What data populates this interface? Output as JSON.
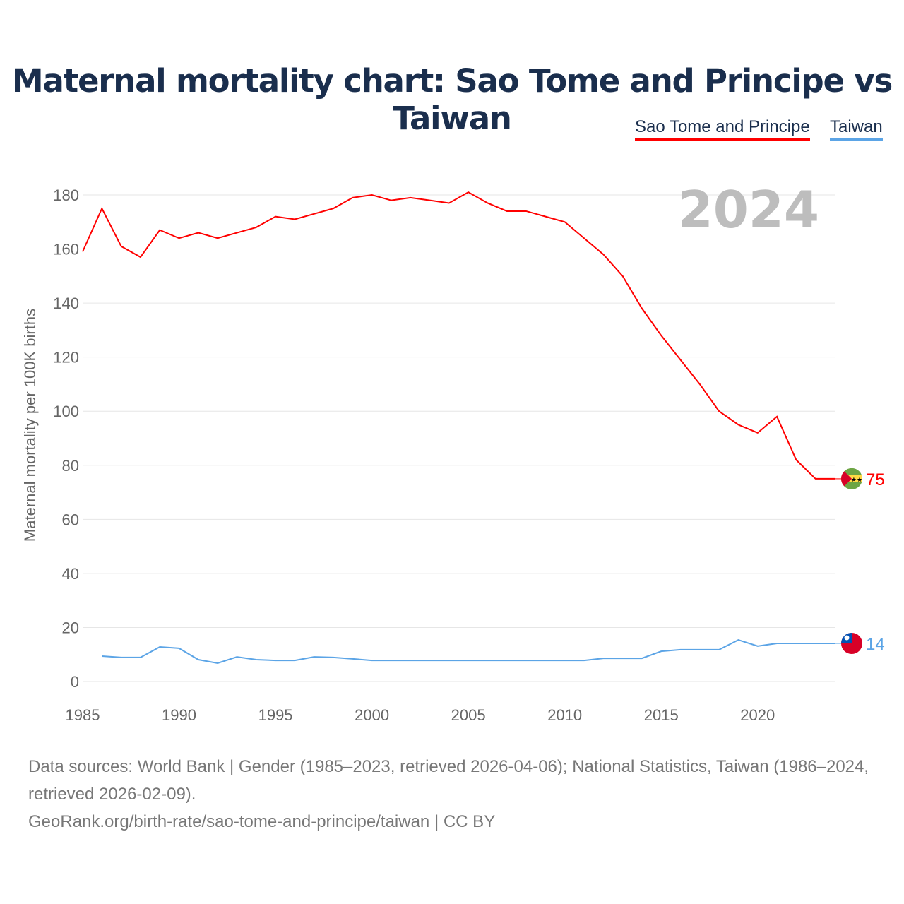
{
  "chart_data": {
    "type": "line",
    "title": "Maternal mortality chart: Sao Tome and Principe vs Taiwan",
    "ylabel": "Maternal mortality per 100K births",
    "xlabel": "",
    "year_watermark": "2024",
    "ylim": [
      0,
      180
    ],
    "xlim": [
      1985,
      2024
    ],
    "yticks": [
      0,
      20,
      40,
      60,
      80,
      100,
      120,
      140,
      160,
      180
    ],
    "xticks": [
      1985,
      1990,
      1995,
      2000,
      2005,
      2010,
      2015,
      2020
    ],
    "grid": true,
    "legend_position": "top-right",
    "series": [
      {
        "name": "Sao Tome and Principe",
        "color": "#ff0000",
        "end_label": "75",
        "x": [
          1985,
          1986,
          1987,
          1988,
          1989,
          1990,
          1991,
          1992,
          1993,
          1994,
          1995,
          1996,
          1997,
          1998,
          1999,
          2000,
          2001,
          2002,
          2003,
          2004,
          2005,
          2006,
          2007,
          2008,
          2009,
          2010,
          2011,
          2012,
          2013,
          2014,
          2015,
          2016,
          2017,
          2018,
          2019,
          2020,
          2021,
          2022,
          2023
        ],
        "values": [
          159,
          175,
          161,
          157,
          167,
          164,
          166,
          164,
          166,
          168,
          172,
          171,
          173,
          175,
          179,
          180,
          178,
          179,
          178,
          177,
          181,
          177,
          174,
          174,
          172,
          170,
          164,
          158,
          150,
          138,
          128,
          119,
          110,
          100,
          95,
          92,
          98,
          82,
          75
        ]
      },
      {
        "name": "Taiwan",
        "color": "#5ba4e6",
        "end_label": "14",
        "x": [
          1986,
          1987,
          1988,
          1989,
          1990,
          1991,
          1992,
          1993,
          1994,
          1995,
          1996,
          1997,
          1998,
          1999,
          2000,
          2001,
          2002,
          2003,
          2004,
          2005,
          2006,
          2007,
          2008,
          2009,
          2010,
          2011,
          2012,
          2013,
          2014,
          2015,
          2016,
          2017,
          2018,
          2019,
          2020,
          2021,
          2022,
          2023,
          2024
        ],
        "values": [
          9.4,
          8.9,
          8.9,
          12.8,
          12.3,
          8.1,
          6.8,
          9.1,
          8.1,
          7.8,
          7.8,
          9.1,
          8.9,
          8.4,
          7.8,
          7.8,
          7.8,
          7.8,
          7.8,
          7.8,
          7.8,
          7.8,
          7.8,
          7.8,
          7.8,
          7.8,
          8.6,
          8.6,
          8.6,
          11.2,
          11.8,
          11.8,
          11.8,
          15.4,
          13.1,
          14.1,
          14.1,
          14.1,
          14.1
        ]
      }
    ]
  },
  "footer": {
    "sources": "Data sources: World Bank | Gender (1985–2023, retrieved 2026-04-06); National Statistics, Taiwan (1986–2024, retrieved 2026-02-09).",
    "link": "GeoRank.org/birth-rate/sao-tome-and-principe/taiwan | CC BY"
  }
}
